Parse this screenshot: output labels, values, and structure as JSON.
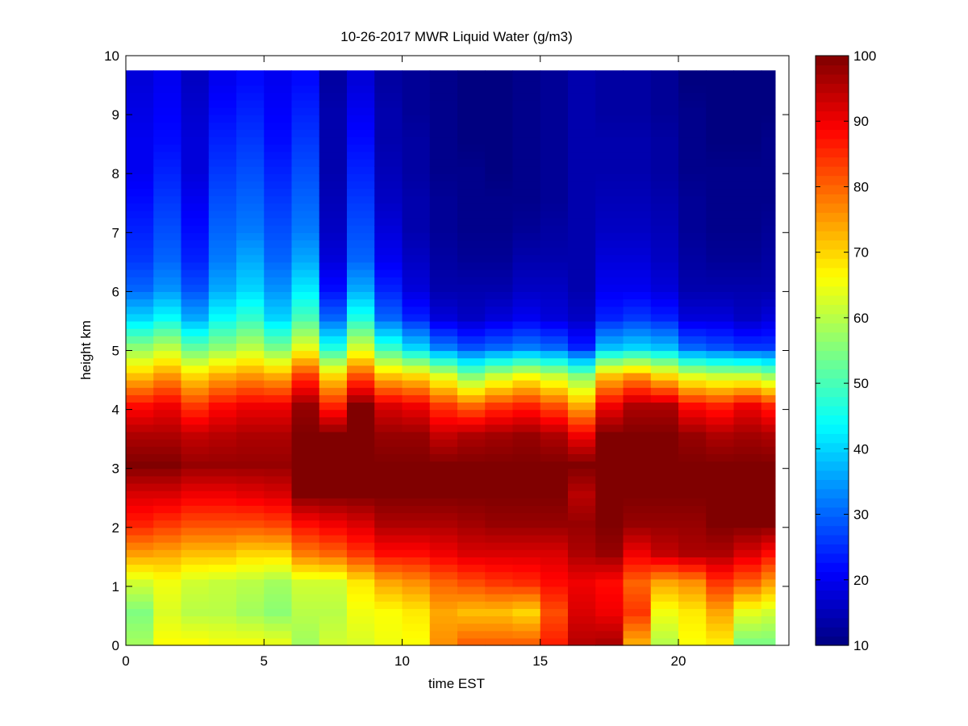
{
  "chart_data": {
    "type": "heatmap",
    "title": "10-26-2017 MWR Liquid Water (g/m3)",
    "xlabel": "time EST",
    "ylabel": "height km",
    "xlim": [
      0,
      24
    ],
    "ylim": [
      0,
      10
    ],
    "xticks": [
      "0",
      "5",
      "10",
      "15",
      "20"
    ],
    "yticks": [
      "0",
      "1",
      "2",
      "3",
      "4",
      "5",
      "6",
      "7",
      "8",
      "9",
      "10"
    ],
    "colorbar": {
      "colormap": "jet",
      "range": [
        10,
        100
      ],
      "ticks": [
        "10",
        "20",
        "30",
        "40",
        "50",
        "60",
        "70",
        "80",
        "90",
        "100"
      ]
    },
    "time_hours": [
      0,
      1,
      2,
      3,
      4,
      5,
      6,
      7,
      8,
      9,
      10,
      11,
      12,
      13,
      14,
      15,
      16,
      17,
      18,
      19,
      20,
      21,
      22,
      23
    ],
    "data_time_extent": [
      0,
      23.5
    ],
    "data_height_extent_km": [
      0,
      9.75
    ],
    "heights_km": [
      0.0,
      0.5,
      1.0,
      1.5,
      2.0,
      2.5,
      3.0,
      3.5,
      4.0,
      4.5,
      5.0,
      5.5,
      6.0,
      6.5,
      7.0,
      7.5,
      8.0,
      8.5,
      9.0,
      9.5
    ],
    "values": [
      [
        58,
        66,
        66,
        65,
        65,
        64,
        58,
        62,
        63,
        65,
        66,
        76,
        80,
        80,
        80,
        86,
        95,
        96,
        74,
        60,
        66,
        68,
        55,
        55
      ],
      [
        55,
        63,
        60,
        60,
        58,
        56,
        60,
        60,
        65,
        66,
        68,
        74,
        72,
        72,
        70,
        82,
        92,
        90,
        84,
        65,
        68,
        74,
        64,
        62
      ],
      [
        62,
        65,
        62,
        61,
        60,
        58,
        62,
        62,
        68,
        74,
        76,
        80,
        82,
        84,
        85,
        88,
        90,
        88,
        80,
        74,
        76,
        84,
        80,
        75
      ],
      [
        75,
        74,
        72,
        72,
        70,
        70,
        78,
        80,
        84,
        88,
        88,
        90,
        92,
        92,
        92,
        92,
        96,
        98,
        90,
        94,
        96,
        96,
        92,
        88
      ],
      [
        86,
        84,
        82,
        82,
        82,
        83,
        88,
        90,
        92,
        96,
        96,
        96,
        97,
        98,
        98,
        98,
        98,
        100,
        98,
        98,
        98,
        100,
        100,
        100
      ],
      [
        92,
        92,
        90,
        90,
        91,
        92,
        100,
        100,
        100,
        100,
        100,
        100,
        100,
        100,
        100,
        100,
        95,
        100,
        100,
        100,
        100,
        100,
        100,
        100
      ],
      [
        100,
        100,
        98,
        98,
        98,
        98,
        100,
        100,
        100,
        100,
        100,
        100,
        100,
        100,
        100,
        100,
        100,
        100,
        100,
        100,
        100,
        100,
        100,
        100
      ],
      [
        96,
        96,
        94,
        95,
        96,
        96,
        100,
        100,
        100,
        98,
        98,
        94,
        96,
        97,
        98,
        96,
        90,
        100,
        100,
        100,
        98,
        96,
        97,
        96
      ],
      [
        88,
        90,
        84,
        88,
        90,
        90,
        98,
        86,
        100,
        92,
        90,
        84,
        80,
        84,
        86,
        82,
        74,
        90,
        96,
        96,
        88,
        86,
        90,
        86
      ],
      [
        72,
        76,
        70,
        74,
        76,
        74,
        84,
        70,
        82,
        72,
        70,
        64,
        56,
        62,
        66,
        62,
        56,
        72,
        76,
        70,
        64,
        62,
        62,
        58
      ],
      [
        56,
        60,
        52,
        56,
        60,
        54,
        64,
        46,
        62,
        48,
        40,
        32,
        28,
        30,
        32,
        30,
        24,
        38,
        40,
        38,
        30,
        28,
        26,
        26
      ],
      [
        40,
        44,
        36,
        44,
        48,
        40,
        50,
        30,
        46,
        30,
        24,
        18,
        16,
        18,
        20,
        18,
        16,
        24,
        26,
        24,
        18,
        18,
        16,
        18
      ],
      [
        30,
        34,
        28,
        36,
        40,
        34,
        42,
        22,
        36,
        24,
        18,
        14,
        14,
        14,
        16,
        16,
        14,
        20,
        20,
        18,
        14,
        14,
        14,
        14
      ],
      [
        26,
        30,
        24,
        32,
        36,
        30,
        36,
        18,
        30,
        20,
        16,
        13,
        12,
        12,
        14,
        14,
        14,
        18,
        18,
        16,
        13,
        12,
        12,
        13
      ],
      [
        24,
        28,
        22,
        30,
        32,
        28,
        32,
        16,
        28,
        18,
        14,
        12,
        11,
        11,
        12,
        13,
        14,
        16,
        16,
        15,
        12,
        11,
        11,
        12
      ],
      [
        22,
        26,
        20,
        28,
        30,
        26,
        30,
        15,
        26,
        16,
        14,
        12,
        11,
        11,
        11,
        12,
        14,
        15,
        15,
        14,
        12,
        11,
        11,
        11
      ],
      [
        20,
        24,
        18,
        26,
        28,
        24,
        28,
        14,
        24,
        15,
        13,
        11,
        11,
        10,
        11,
        12,
        14,
        14,
        14,
        13,
        11,
        11,
        11,
        11
      ],
      [
        20,
        22,
        18,
        24,
        26,
        22,
        26,
        14,
        22,
        14,
        13,
        11,
        10,
        10,
        11,
        12,
        14,
        14,
        14,
        13,
        11,
        10,
        10,
        11
      ],
      [
        19,
        21,
        17,
        22,
        24,
        21,
        24,
        14,
        20,
        14,
        12,
        11,
        10,
        10,
        11,
        12,
        14,
        13,
        13,
        12,
        11,
        10,
        10,
        10
      ],
      [
        18,
        20,
        16,
        20,
        22,
        20,
        22,
        13,
        18,
        13,
        12,
        11,
        10,
        10,
        11,
        12,
        14,
        13,
        13,
        12,
        10,
        10,
        10,
        10
      ]
    ],
    "grid": false,
    "colorbar_position": "right"
  }
}
